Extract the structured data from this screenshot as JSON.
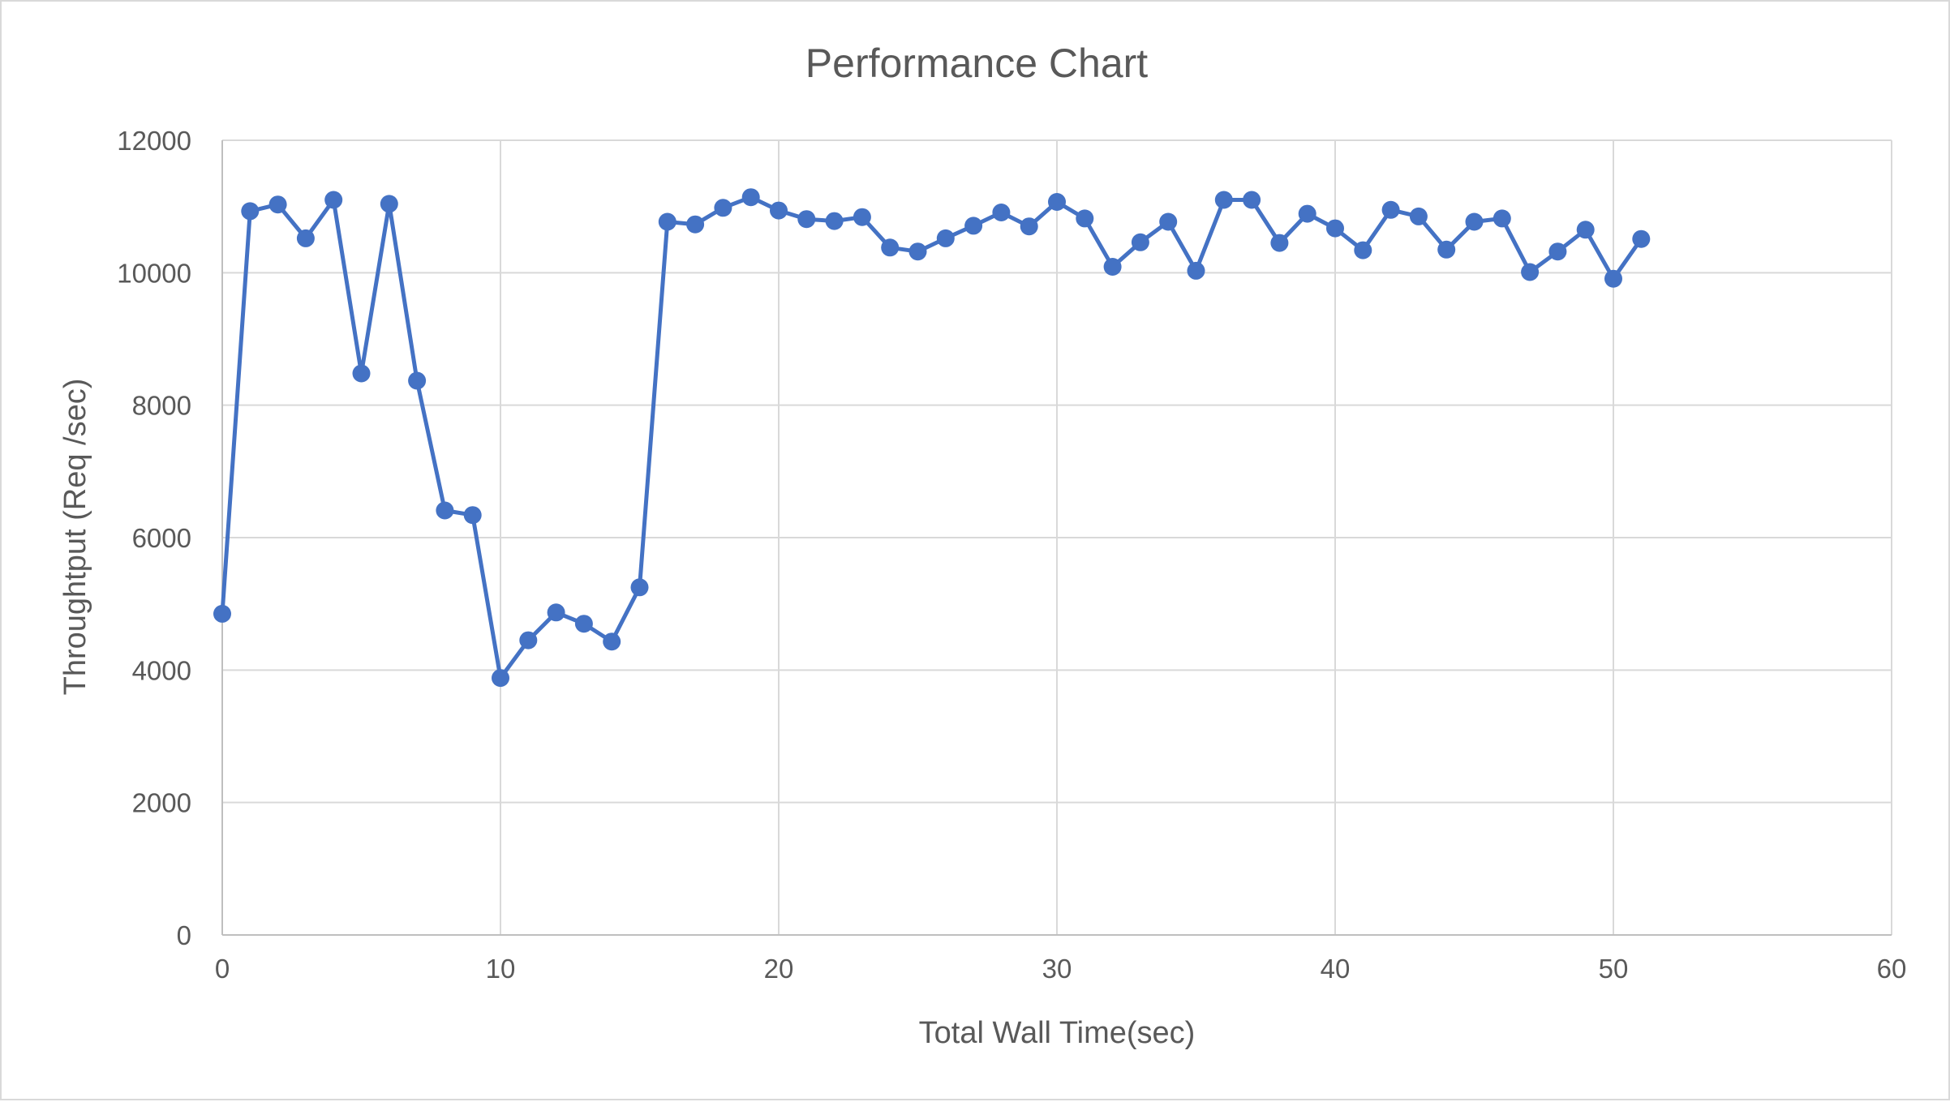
{
  "chart_data": {
    "type": "line",
    "title": "Performance Chart",
    "xlabel": "Total Wall Time(sec)",
    "ylabel": "Throughtput (Req /sec)",
    "xlim": [
      0,
      60
    ],
    "ylim": [
      0,
      12000
    ],
    "xticks": [
      0,
      10,
      20,
      30,
      40,
      50,
      60
    ],
    "yticks": [
      0,
      2000,
      4000,
      6000,
      8000,
      10000,
      12000
    ],
    "grid": true,
    "legend": "none",
    "colors": {
      "series": "#4472c4",
      "grid": "#d9d9d9",
      "axis": "#bfbfbf",
      "text": "#595959"
    },
    "series": [
      {
        "x": [
          0,
          1,
          2,
          3,
          4,
          5,
          6,
          7,
          8,
          9,
          10,
          11,
          12,
          13,
          14,
          15,
          16,
          17,
          18,
          19,
          20,
          21,
          22,
          23,
          24,
          25,
          26,
          27,
          28,
          29,
          30,
          31,
          32,
          33,
          34,
          35,
          36,
          37,
          38,
          39,
          40,
          41,
          42,
          43,
          44,
          45,
          46,
          47,
          48,
          49,
          50,
          51
        ],
        "values": [
          4850,
          10930,
          11030,
          10520,
          11100,
          8480,
          11040,
          8370,
          6410,
          6340,
          3880,
          4450,
          4870,
          4700,
          4430,
          5250,
          10770,
          10730,
          10980,
          11140,
          10940,
          10810,
          10780,
          10840,
          10380,
          10320,
          10520,
          10710,
          10910,
          10700,
          11070,
          10820,
          10090,
          10460,
          10770,
          10030,
          11100,
          11100,
          10450,
          10890,
          10670,
          10340,
          10950,
          10850,
          10350,
          10770,
          10820,
          10010,
          10320,
          10650,
          9910,
          10510
        ]
      }
    ]
  }
}
